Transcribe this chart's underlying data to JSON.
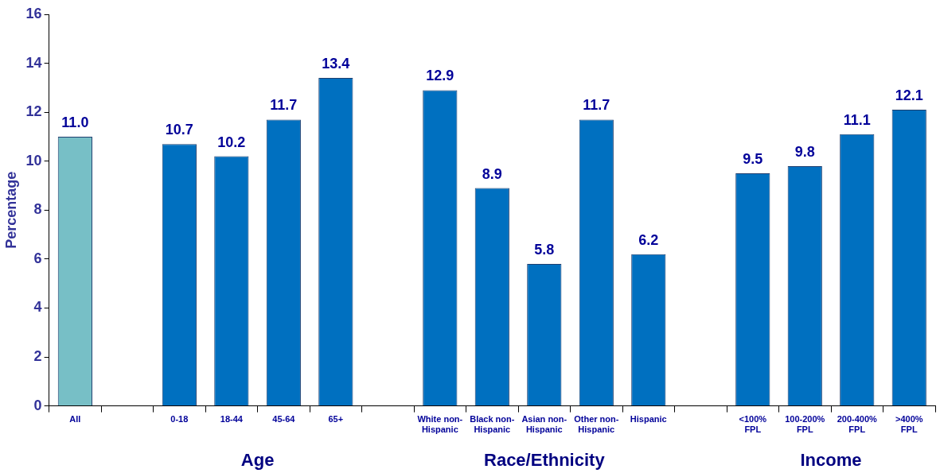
{
  "chart_data": {
    "type": "bar",
    "ylabel": "Percentage",
    "categories": [
      "All",
      null,
      "0-18",
      "18-44",
      "45-64",
      "65+",
      null,
      "White non-Hispanic",
      "Black non-Hispanic",
      "Asian non-Hispanic",
      "Other non-Hispanic",
      "Hispanic",
      null,
      "<100% FPL",
      "100-200% FPL",
      "200-400% FPL",
      ">400% FPL"
    ],
    "values": [
      11.0,
      null,
      10.7,
      10.2,
      11.7,
      13.4,
      null,
      12.9,
      8.9,
      5.8,
      11.7,
      6.2,
      null,
      9.5,
      9.8,
      11.1,
      12.1
    ],
    "colors": [
      "#77bfc6",
      null,
      "#0070c0",
      "#0070c0",
      "#0070c0",
      "#0070c0",
      null,
      "#0070c0",
      "#0070c0",
      "#0070c0",
      "#0070c0",
      "#0070c0",
      null,
      "#0070c0",
      "#0070c0",
      "#0070c0",
      "#0070c0"
    ],
    "value_labels": [
      "11.0",
      null,
      "10.7",
      "10.2",
      "11.7",
      "13.4",
      null,
      "12.9",
      "8.9",
      "5.8",
      "11.7",
      "6.2",
      null,
      "9.5",
      "9.8",
      "11.1",
      "12.1"
    ],
    "ylim": [
      0,
      16
    ],
    "yticks": [
      0,
      2,
      4,
      6,
      8,
      10,
      12,
      14,
      16
    ],
    "grid": false,
    "legend": false,
    "annotations": [
      "Age",
      "Race/Ethnicity",
      "Income"
    ]
  }
}
